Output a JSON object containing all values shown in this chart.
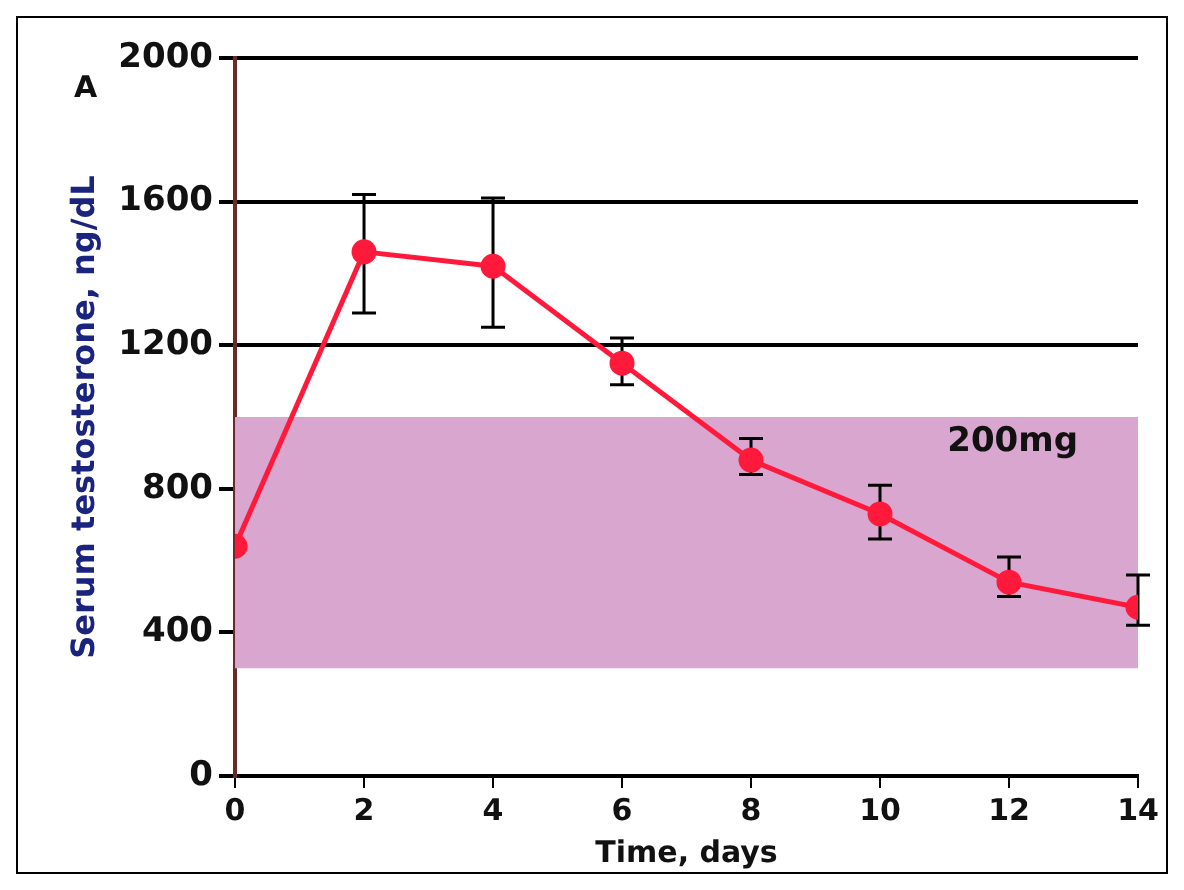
{
  "chart_data": {
    "type": "line",
    "xlabel": "Time, days",
    "ylabel": "Serum testosterone, ng/dL",
    "x": [
      0,
      2,
      4,
      6,
      8,
      10,
      12,
      14
    ],
    "series": [
      {
        "color": "#ff1a3c",
        "values": [
          640,
          1460,
          1420,
          1150,
          880,
          730,
          540,
          470
        ],
        "errors": [
          null,
          [
            1290,
            1620
          ],
          [
            1250,
            1610
          ],
          [
            1090,
            1220
          ],
          [
            840,
            940
          ],
          [
            660,
            810
          ],
          [
            500,
            610
          ],
          [
            420,
            560
          ]
        ]
      }
    ],
    "xlim": [
      0,
      14
    ],
    "xticks": [
      0,
      2,
      4,
      6,
      8,
      10,
      12,
      14
    ],
    "ylim": [
      0,
      2000
    ],
    "yticks": [
      0,
      400,
      800,
      1200,
      1600,
      2000
    ],
    "grid": "y",
    "marker": "circle",
    "line_style": "solid",
    "bands": [
      {
        "axis": "y",
        "from": 300,
        "to": 1000,
        "label": "200mg",
        "color": "#d9a6cf"
      }
    ],
    "annotations": [
      "A"
    ]
  }
}
